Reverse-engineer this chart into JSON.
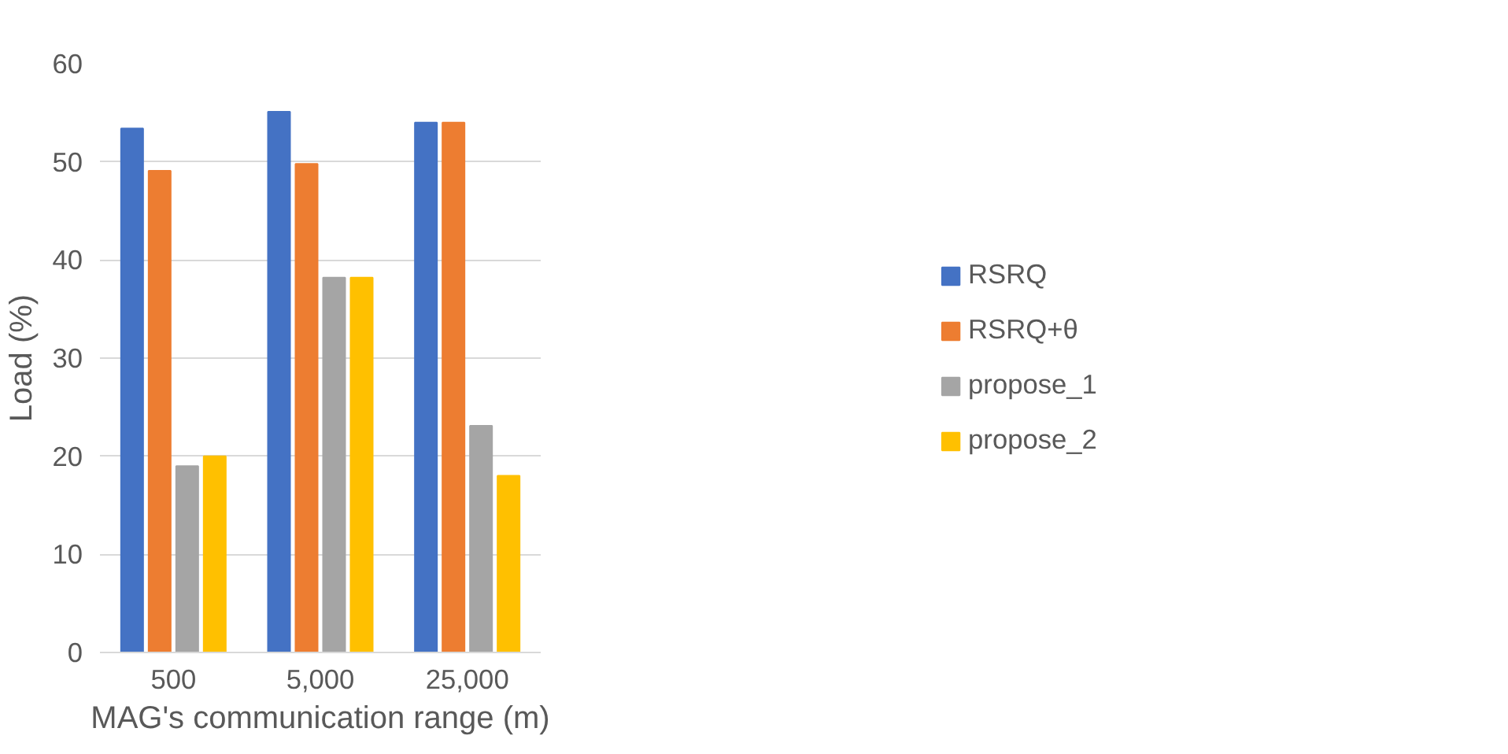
{
  "chart_data": {
    "type": "bar",
    "xlabel": "MAG's communication range (m)",
    "ylabel": "Load (%)",
    "categories": [
      "500",
      "5,000",
      "25,000"
    ],
    "series": [
      {
        "name": "RSRQ",
        "color": "#4472c4",
        "values": [
          53.4,
          55.1,
          54.0
        ]
      },
      {
        "name": "RSRQ+θ",
        "color": "#ed7d31",
        "values": [
          49.1,
          49.8,
          54.0
        ]
      },
      {
        "name": "propose_1",
        "color": "#a5a5a5",
        "values": [
          19.0,
          38.2,
          23.1
        ]
      },
      {
        "name": "propose_2",
        "color": "#ffc000",
        "values": [
          20.0,
          38.2,
          18.0
        ]
      }
    ],
    "ylim": [
      0,
      60
    ],
    "yticks": [
      0,
      10,
      20,
      30,
      40,
      50,
      60
    ],
    "grid": "y",
    "legend": "right"
  }
}
